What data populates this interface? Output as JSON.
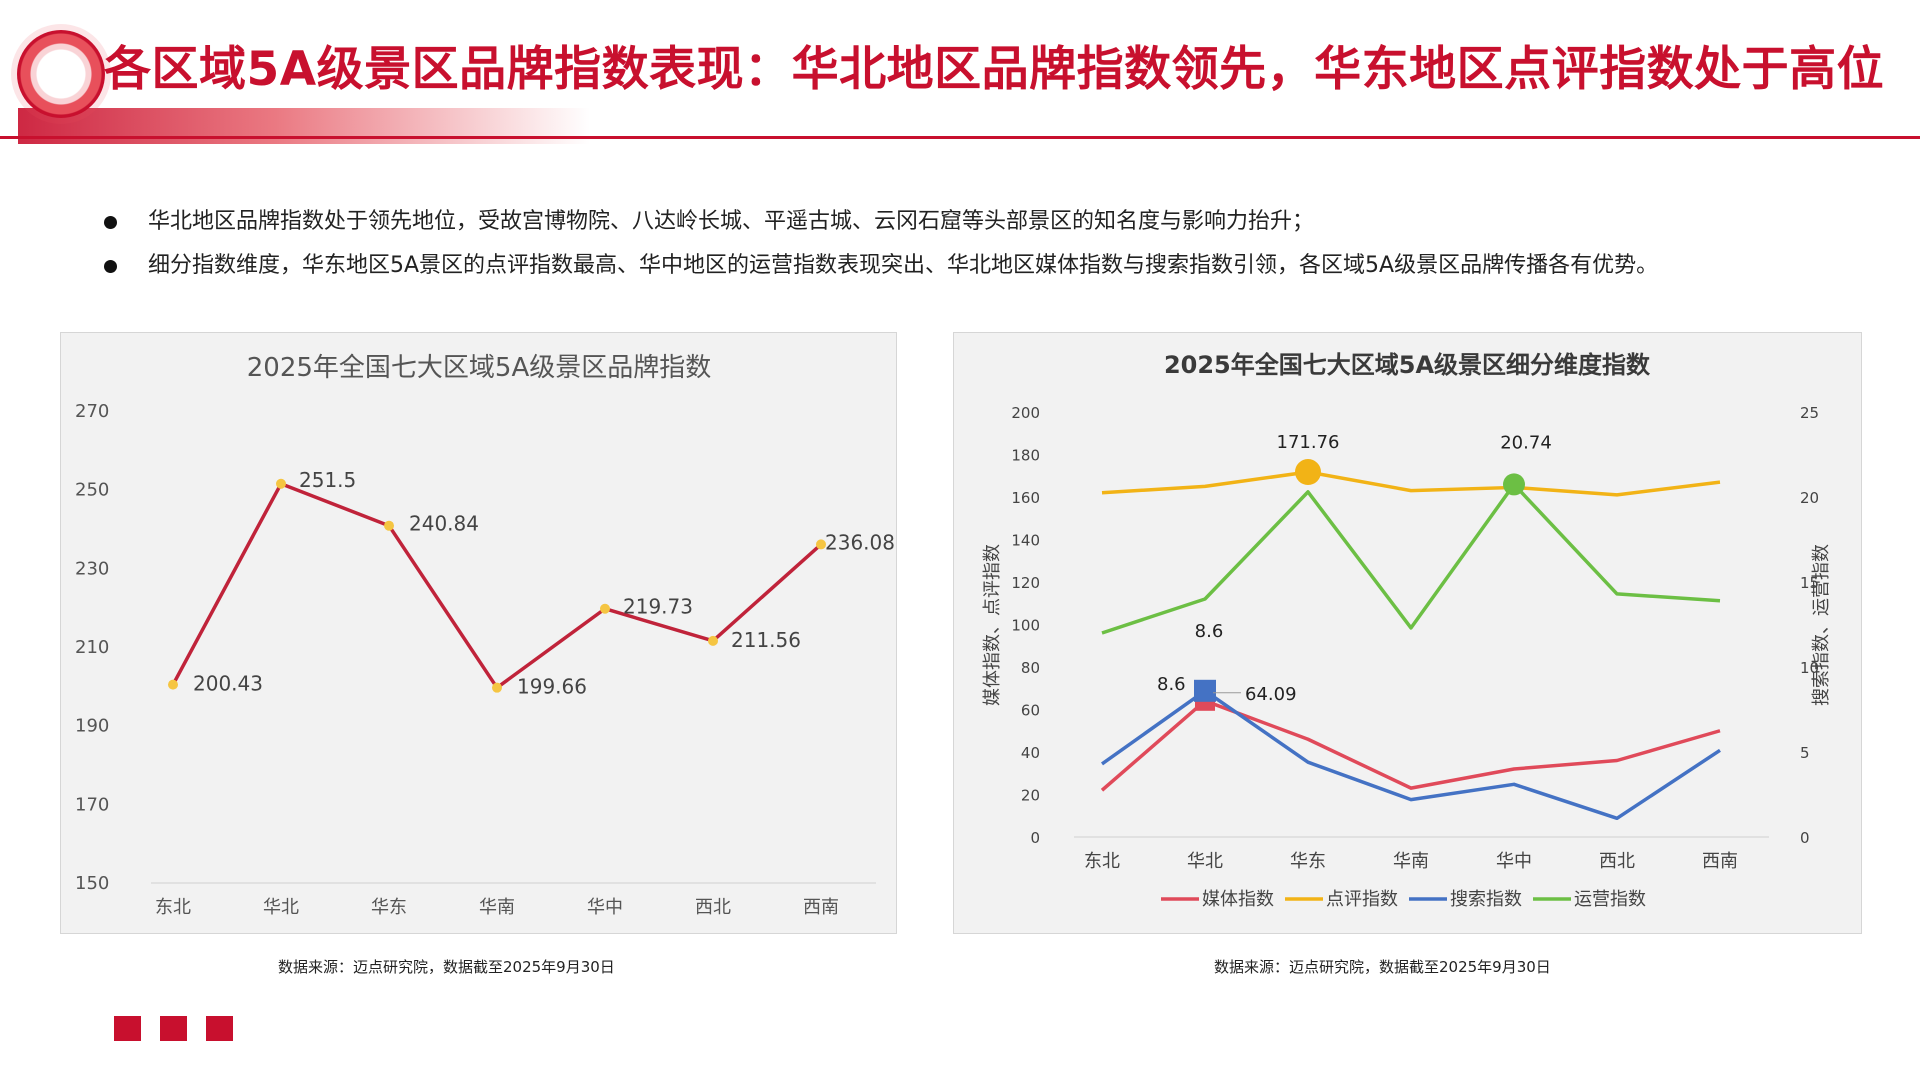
{
  "header": {
    "title": "各区域5A级景区品牌指数表现：华北地区品牌指数领先，华东地区点评指数处于高位"
  },
  "bullets": [
    "华北地区品牌指数处于领先地位，受故宫博物院、八达岭长城、平遥古城、云冈石窟等头部景区的知名度与影响力抬升；",
    "细分指数维度，华东地区5A景区的点评指数最高、华中地区的运营指数表现突出、华北地区媒体指数与搜索指数引领，各区域5A级景区品牌传播各有优势。"
  ],
  "sources": {
    "left": "数据来源：迈点研究院，数据截至2025年9月30日",
    "right": "数据来源：迈点研究院，数据截至2025年9月30日"
  },
  "colors": {
    "brand": "#c8102e",
    "line_left": "#c0233a",
    "marker_left": "#f5c542",
    "media": "#e04a5a",
    "review": "#f2b316",
    "search": "#4472c4",
    "ops": "#6cbf44"
  },
  "chart_data": [
    {
      "type": "line",
      "title": "2025年全国七大区域5A级景区品牌指数",
      "categories": [
        "东北",
        "华北",
        "华东",
        "华南",
        "华中",
        "西北",
        "西南"
      ],
      "values": [
        200.43,
        251.5,
        240.84,
        199.66,
        219.73,
        211.56,
        236.08
      ],
      "data_labels": [
        "200.43",
        "251.5",
        "240.84",
        "199.66",
        "219.73",
        "211.56",
        "236.08"
      ],
      "ylim": [
        150,
        270
      ],
      "yticks": [
        "150",
        "170",
        "190",
        "210",
        "230",
        "250",
        "270"
      ],
      "legend": "none",
      "grid": false
    },
    {
      "type": "line",
      "title": "2025年全国七大区域5A级景区细分维度指数",
      "categories": [
        "东北",
        "华北",
        "华东",
        "华南",
        "华中",
        "西北",
        "西南"
      ],
      "ylabel_left": "媒体指数、点评指数",
      "ylabel_right": "搜索指数、运营指数",
      "ylim_left": [
        0,
        200
      ],
      "ylim_right": [
        0,
        25
      ],
      "yticks_left": [
        "0",
        "20",
        "40",
        "60",
        "80",
        "100",
        "120",
        "140",
        "160",
        "180",
        "200"
      ],
      "yticks_right": [
        "0",
        "5",
        "10",
        "15",
        "20",
        "25"
      ],
      "legend": "bottom",
      "series": [
        {
          "name": "媒体指数",
          "axis": "left",
          "values": [
            22,
            64.09,
            46,
            23,
            32,
            36,
            50
          ]
        },
        {
          "name": "点评指数",
          "axis": "left",
          "values": [
            162,
            165,
            171.76,
            163,
            164.5,
            161,
            167
          ]
        },
        {
          "name": "搜索指数",
          "axis": "right",
          "values": [
            4.3,
            8.6,
            4.4,
            2.2,
            3.1,
            1.1,
            5.1
          ]
        },
        {
          "name": "运营指数",
          "axis": "right",
          "values": [
            12,
            14,
            20.3,
            12.3,
            20.74,
            14.3,
            13.9
          ]
        }
      ],
      "annotations": [
        {
          "series": 1,
          "index": 2,
          "text": "171.76"
        },
        {
          "series": 3,
          "index": 4,
          "text": "20.74"
        },
        {
          "series": 2,
          "index": 1,
          "text": "8.6"
        },
        {
          "series": 2,
          "index": 1,
          "text": "8.6"
        },
        {
          "series": 0,
          "index": 1,
          "text": "64.09"
        }
      ]
    }
  ]
}
